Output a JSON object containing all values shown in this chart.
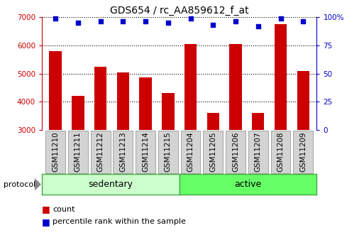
{
  "title": "GDS654 / rc_AA859612_f_at",
  "categories": [
    "GSM11210",
    "GSM11211",
    "GSM11212",
    "GSM11213",
    "GSM11214",
    "GSM11215",
    "GSM11204",
    "GSM11205",
    "GSM11206",
    "GSM11207",
    "GSM11208",
    "GSM11209"
  ],
  "bar_values": [
    5800,
    4200,
    5250,
    5050,
    4850,
    4300,
    6050,
    3600,
    6050,
    3600,
    6750,
    5100
  ],
  "percentile_values": [
    99,
    95,
    96,
    96,
    96,
    95,
    99,
    93,
    96,
    92,
    99,
    96
  ],
  "bar_color": "#cc0000",
  "dot_color": "#0000cc",
  "ylim_left": [
    3000,
    7000
  ],
  "ylim_right": [
    0,
    100
  ],
  "yticks_left": [
    3000,
    4000,
    5000,
    6000,
    7000
  ],
  "yticks_right": [
    0,
    25,
    50,
    75,
    100
  ],
  "grid_values": [
    4000,
    5000,
    6000,
    7000
  ],
  "n_sedentary": 6,
  "protocol_label": "protocol",
  "sedentary_label": "sedentary",
  "active_label": "active",
  "legend_count": "count",
  "legend_percentile": "percentile rank within the sample",
  "bg_color": "#ffffff",
  "grid_color": "#000000",
  "title_fontsize": 10,
  "tick_fontsize": 7.5,
  "bar_width": 0.55,
  "dot_size": 25,
  "sedentary_color": "#ccffcc",
  "active_color": "#66ff66",
  "label_bg_color": "#d3d3d3"
}
